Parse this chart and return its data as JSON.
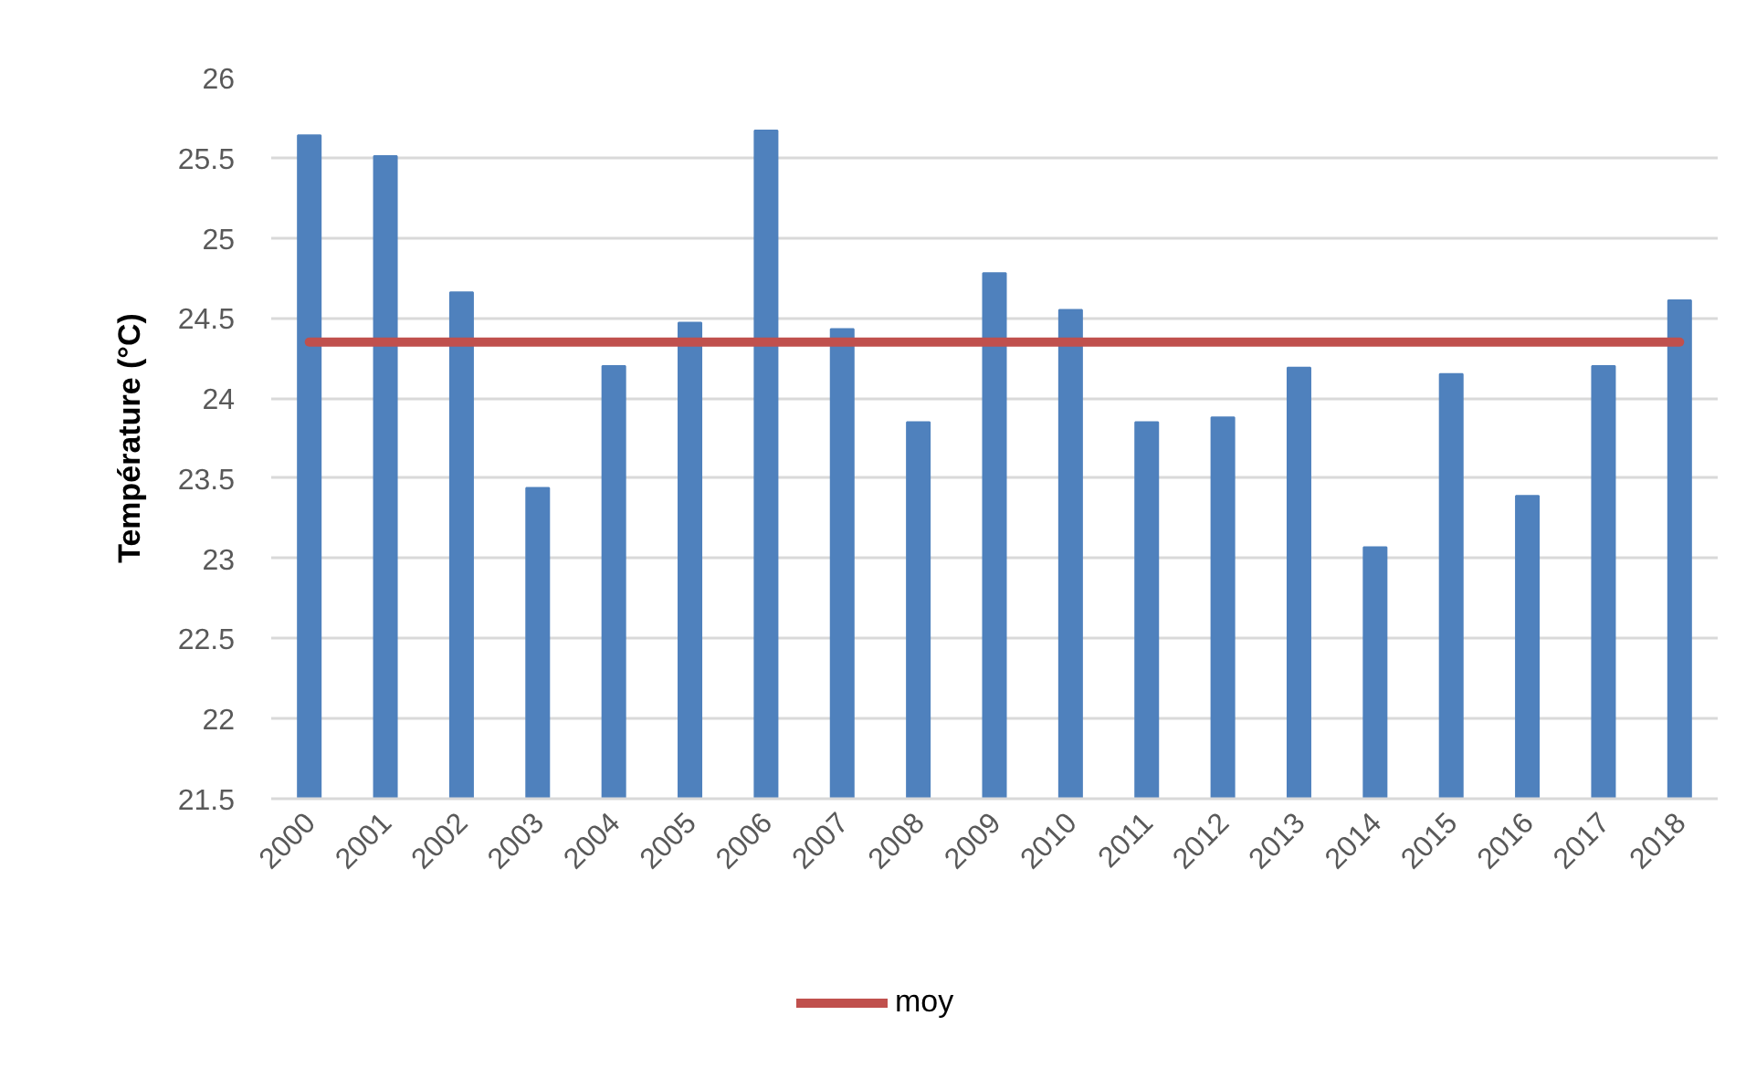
{
  "chart_data": {
    "type": "bar",
    "ylabel": "Température (°C)",
    "categories": [
      "2000",
      "2001",
      "2002",
      "2003",
      "2004",
      "2005",
      "2006",
      "2007",
      "2008",
      "2009",
      "2010",
      "2011",
      "2012",
      "2013",
      "2014",
      "2015",
      "2016",
      "2017",
      "2018"
    ],
    "series": [
      {
        "color": "#4f81bd",
        "values": [
          25.64,
          25.51,
          24.66,
          23.44,
          24.2,
          24.47,
          25.67,
          24.43,
          23.85,
          24.78,
          24.55,
          23.85,
          23.88,
          24.19,
          23.07,
          24.15,
          23.39,
          24.2,
          24.61
        ]
      },
      {
        "type": "line",
        "name": "moy",
        "color": "#c0504d",
        "values": [
          24.35,
          24.35,
          24.35,
          24.35,
          24.35,
          24.35,
          24.35,
          24.35,
          24.35,
          24.35,
          24.35,
          24.35,
          24.35,
          24.35,
          24.35,
          24.35,
          24.35,
          24.35,
          24.35
        ]
      }
    ],
    "ylim": [
      21.5,
      26
    ],
    "yticks": [
      21.5,
      22,
      22.5,
      23,
      23.5,
      24,
      24.5,
      25,
      25.5,
      26
    ],
    "grid": "y",
    "legend": "bottom"
  }
}
